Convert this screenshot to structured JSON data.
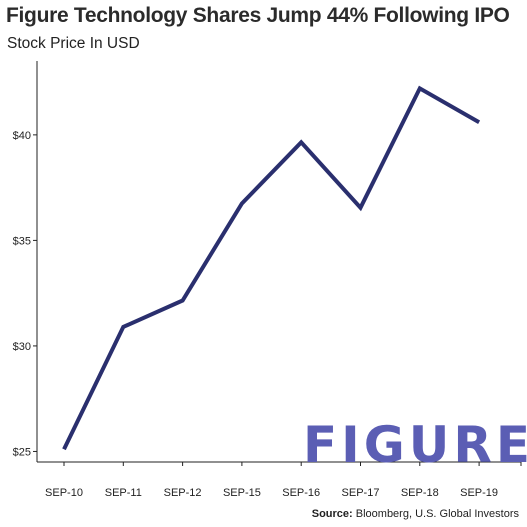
{
  "chart_data": {
    "type": "line",
    "title": "Figure Technology Shares Jump 44% Following IPO",
    "subtitle": "Stock Price In USD",
    "categories": [
      "SEP-10",
      "SEP-11",
      "SEP-12",
      "SEP-15",
      "SEP-16",
      "SEP-17",
      "SEP-18",
      "SEP-19"
    ],
    "series": [
      {
        "values": [
          25.1,
          30.9,
          32.15,
          36.75,
          39.65,
          36.55,
          42.2,
          40.6
        ],
        "color": "#2a2f6e"
      }
    ],
    "y_ticks": [
      25,
      30,
      35,
      40
    ],
    "y_tick_labels": [
      "$25",
      "$30",
      "$35",
      "$40"
    ],
    "ylim": [
      24.5,
      43.5
    ],
    "grid": false,
    "xlabel": "",
    "ylabel": ""
  },
  "logo": {
    "text": "FIGURE",
    "color": "#5b5eb4"
  },
  "source": {
    "label": "Source:",
    "text": " Bloomberg, U.S. Global Investors"
  }
}
